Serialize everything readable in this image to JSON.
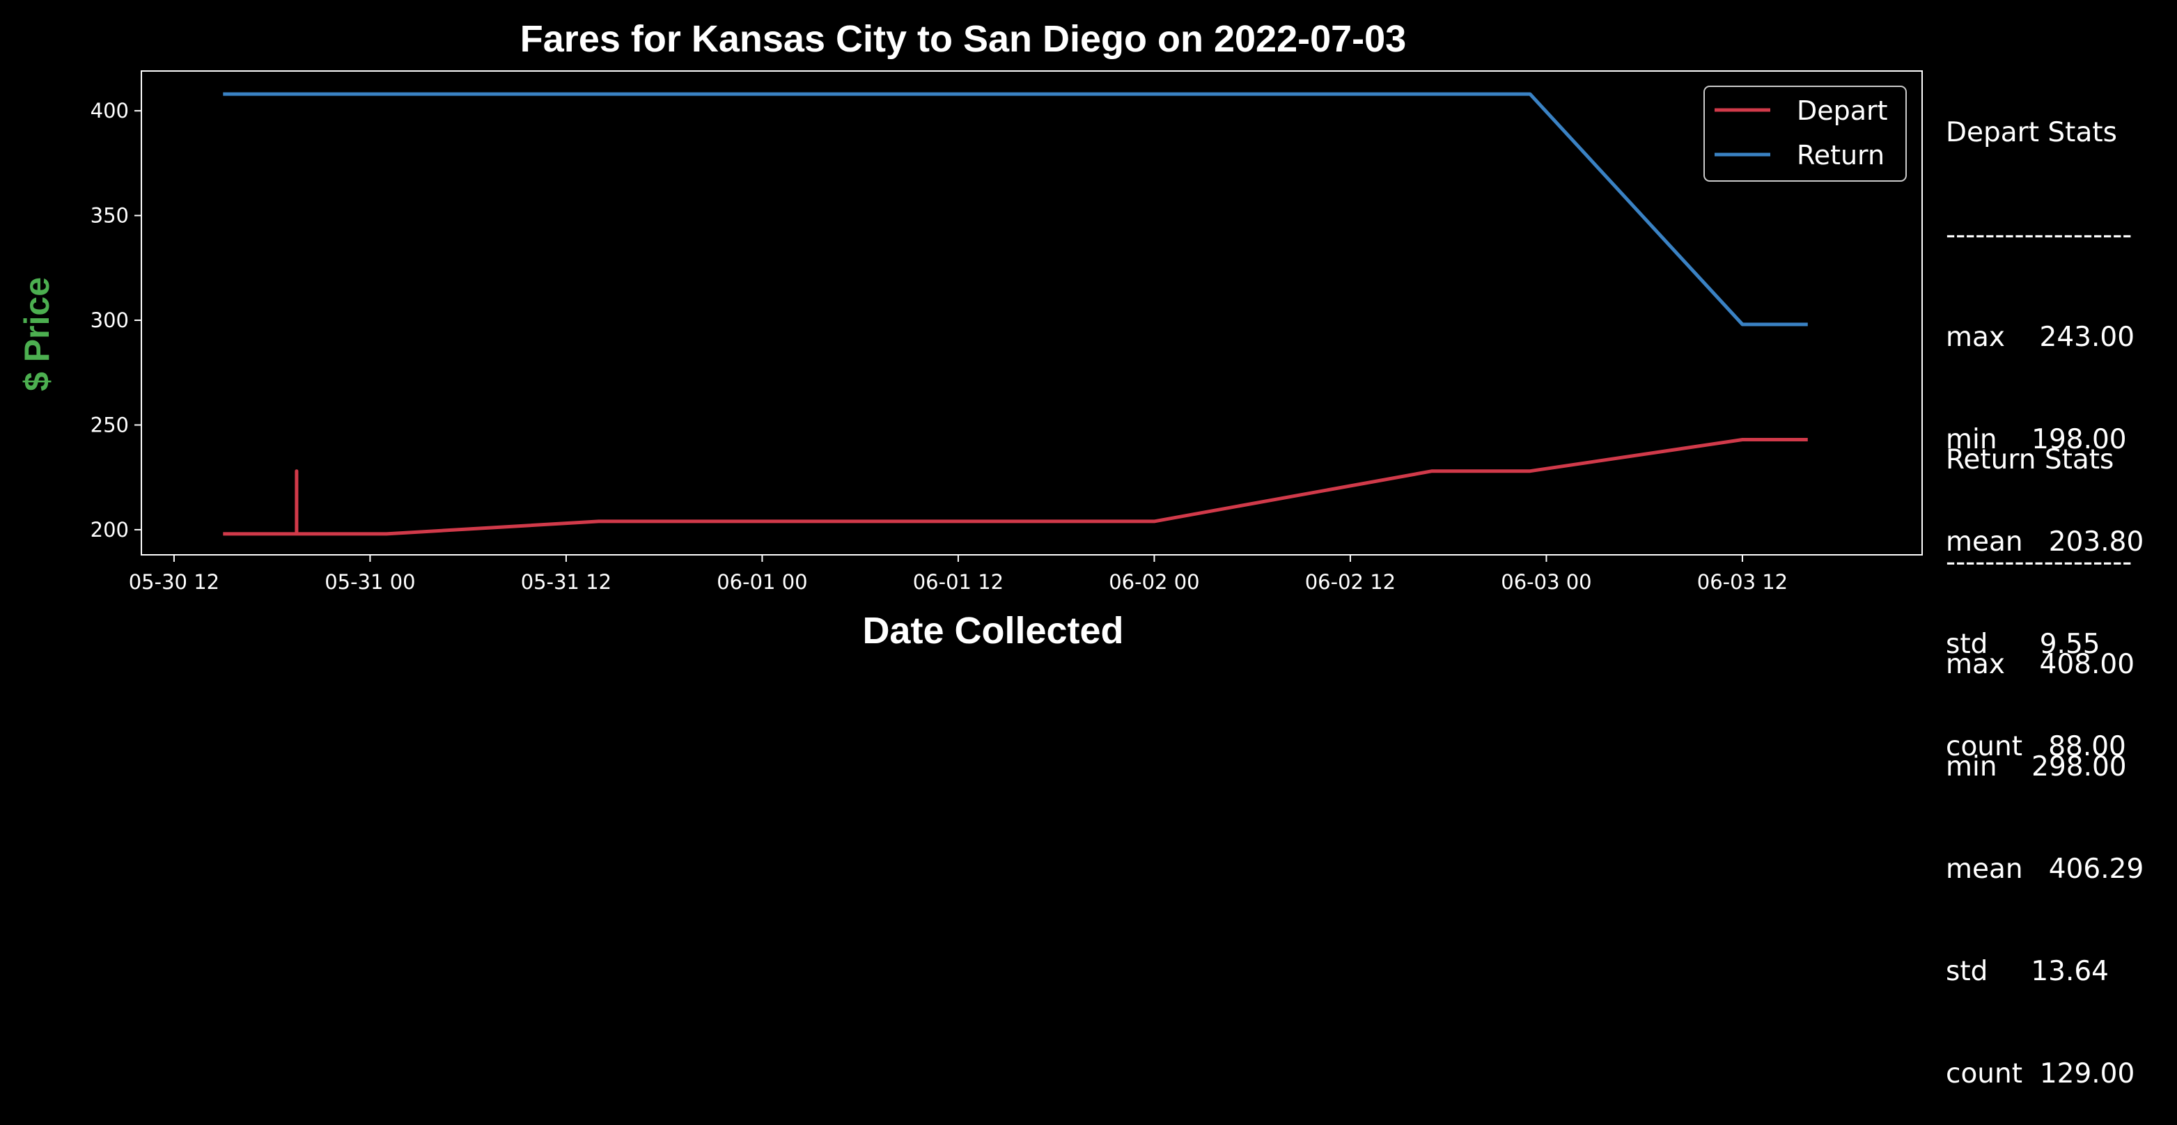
{
  "chart_data": {
    "type": "line",
    "title": "Fares for Kansas City to San Diego on 2022-07-03",
    "xlabel": "Date Collected",
    "ylabel": "$ Price",
    "ylabel_color": "#4caf50",
    "x_ticks": [
      "2022-05-30T12:00",
      "2022-05-31T00:00",
      "2022-05-31T12:00",
      "2022-06-01T00:00",
      "2022-06-01T12:00",
      "2022-06-02T00:00",
      "2022-06-02T12:00",
      "2022-06-03T00:00",
      "2022-06-03T12:00"
    ],
    "x_tick_labels": [
      "05-30 12",
      "05-31 00",
      "05-31 12",
      "06-01 00",
      "06-01 12",
      "06-02 00",
      "06-02 12",
      "06-03 00",
      "06-03 12"
    ],
    "xlim": [
      "2022-05-30T10:00",
      "2022-06-03T23:00"
    ],
    "y_ticks": [
      200,
      250,
      300,
      350,
      400
    ],
    "y_tick_labels": [
      "200",
      "250",
      "300",
      "350",
      "400"
    ],
    "ylim": [
      188,
      419
    ],
    "grid": false,
    "legend_position": "top-right",
    "series": [
      {
        "name": "Depart",
        "color": "#d13a4a",
        "x": [
          "2022-05-30T15:00",
          "2022-05-30T19:30",
          "2022-05-30T19:30",
          "2022-05-30T19:30",
          "2022-05-30T19:30",
          "2022-05-31T01:00",
          "2022-05-31T14:00",
          "2022-06-02T00:00",
          "2022-06-02T17:00",
          "2022-06-02T23:00",
          "2022-06-03T12:00",
          "2022-06-03T16:00"
        ],
        "y": [
          198,
          198,
          228,
          198,
          198,
          198,
          204,
          204,
          228,
          228,
          243,
          243
        ]
      },
      {
        "name": "Return",
        "color": "#3a82c4",
        "x": [
          "2022-05-30T15:00",
          "2022-06-02T23:00",
          "2022-06-03T12:00",
          "2022-06-03T16:00"
        ],
        "y": [
          408,
          408,
          298,
          298
        ]
      }
    ]
  },
  "stats": {
    "depart": {
      "lines": [
        "Depart Stats",
        "-------------------",
        "max    243.00",
        "min    198.00",
        "mean   203.80",
        "std      9.55",
        "count   88.00"
      ]
    },
    "return": {
      "lines": [
        "Return Stats",
        "-------------------",
        "max    408.00",
        "min    298.00",
        "mean   406.29",
        "std     13.64",
        "count  129.00"
      ]
    }
  }
}
